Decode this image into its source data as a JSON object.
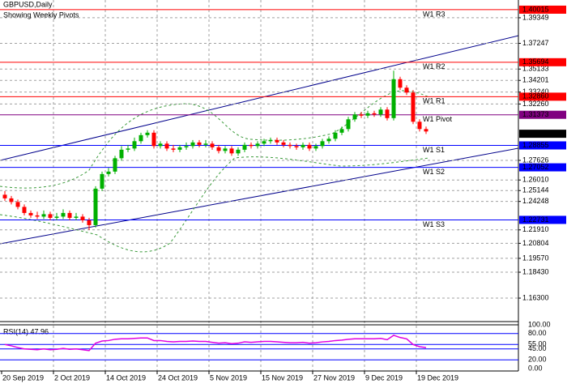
{
  "chart_data": {
    "type": "candlestick",
    "title": "GBPUSD,Daily",
    "subtitle": "Showing Weekly Pivots",
    "categories": [
      "20 Sep 2019",
      null,
      null,
      null,
      null,
      null,
      null,
      null,
      "2 Oct 2019",
      null,
      null,
      null,
      null,
      null,
      null,
      null,
      "14 Oct 2019",
      null,
      null,
      null,
      null,
      null,
      null,
      null,
      "24 Oct 2019",
      null,
      null,
      null,
      null,
      null,
      null,
      null,
      "5 Nov 2019",
      null,
      null,
      null,
      null,
      null,
      null,
      null,
      "15 Nov 2019",
      null,
      null,
      null,
      null,
      null,
      null,
      null,
      "27 Nov 2019",
      null,
      null,
      null,
      null,
      null,
      null,
      null,
      "9 Dec 2019",
      null,
      null,
      null,
      null,
      null,
      null,
      null,
      "19 Dec 2019",
      null
    ],
    "opens": [
      1.248,
      1.245,
      1.242,
      1.238,
      1.233,
      1.231,
      1.23,
      1.232,
      1.229,
      1.23,
      1.233,
      1.229,
      1.23,
      1.227,
      1.223,
      1.253,
      1.265,
      1.267,
      1.278,
      1.285,
      1.286,
      1.292,
      1.297,
      1.299,
      1.288,
      1.29,
      1.286,
      1.285,
      1.287,
      1.288,
      1.291,
      1.289,
      1.29,
      1.287,
      1.284,
      1.286,
      1.282,
      1.285,
      1.289,
      1.288,
      1.29,
      1.292,
      1.293,
      1.291,
      1.289,
      1.288,
      1.287,
      1.289,
      1.286,
      1.288,
      1.292,
      1.294,
      1.299,
      1.302,
      1.31,
      1.314,
      1.313,
      1.315,
      1.314,
      1.318,
      1.311,
      1.343,
      1.336,
      1.332,
      1.308,
      1.302
    ],
    "highs": [
      1.251,
      1.247,
      1.244,
      1.24,
      1.235,
      1.234,
      1.235,
      1.234,
      1.233,
      1.236,
      1.235,
      1.233,
      1.232,
      1.229,
      1.255,
      1.267,
      1.27,
      1.28,
      1.288,
      1.289,
      1.295,
      1.299,
      1.301,
      1.301,
      1.292,
      1.292,
      1.289,
      1.289,
      1.291,
      1.293,
      1.293,
      1.293,
      1.292,
      1.289,
      1.288,
      1.288,
      1.287,
      1.291,
      1.291,
      1.292,
      1.294,
      1.295,
      1.295,
      1.293,
      1.291,
      1.29,
      1.291,
      1.291,
      1.29,
      1.294,
      1.296,
      1.301,
      1.304,
      1.312,
      1.316,
      1.316,
      1.317,
      1.317,
      1.32,
      1.32,
      1.35,
      1.345,
      1.338,
      1.334,
      1.31,
      1.304
    ],
    "lows": [
      1.243,
      1.24,
      1.236,
      1.231,
      1.229,
      1.228,
      1.228,
      1.227,
      1.227,
      1.228,
      1.227,
      1.227,
      1.225,
      1.219,
      1.221,
      1.251,
      1.263,
      1.265,
      1.276,
      1.283,
      1.284,
      1.29,
      1.295,
      1.286,
      1.286,
      1.284,
      1.283,
      1.283,
      1.285,
      1.286,
      1.287,
      1.287,
      1.285,
      1.282,
      1.282,
      1.28,
      1.28,
      1.283,
      1.286,
      1.286,
      1.288,
      1.29,
      1.289,
      1.287,
      1.286,
      1.285,
      1.285,
      1.284,
      1.284,
      1.286,
      1.29,
      1.292,
      1.297,
      1.3,
      1.308,
      1.311,
      1.311,
      1.312,
      1.312,
      1.309,
      1.309,
      1.334,
      1.33,
      1.306,
      1.3,
      1.298
    ],
    "closes": [
      1.245,
      1.242,
      1.238,
      1.233,
      1.231,
      1.23,
      1.232,
      1.229,
      1.23,
      1.233,
      1.229,
      1.23,
      1.227,
      1.223,
      1.253,
      1.265,
      1.267,
      1.278,
      1.285,
      1.286,
      1.292,
      1.297,
      1.299,
      1.288,
      1.29,
      1.286,
      1.285,
      1.287,
      1.288,
      1.291,
      1.289,
      1.29,
      1.287,
      1.284,
      1.286,
      1.282,
      1.285,
      1.289,
      1.288,
      1.29,
      1.292,
      1.293,
      1.291,
      1.289,
      1.288,
      1.287,
      1.289,
      1.286,
      1.288,
      1.292,
      1.294,
      1.299,
      1.302,
      1.31,
      1.314,
      1.313,
      1.315,
      1.314,
      1.318,
      1.311,
      1.343,
      1.336,
      1.332,
      1.308,
      1.302,
      1.3
    ],
    "up_color": "#00b000",
    "down_color": "#ff0000",
    "ylim": [
      1.1437,
      1.4081
    ],
    "yticks": [
      1.39349,
      1.37247,
      1.35133,
      1.34201,
      {
        "value": 1.3324,
        "label": "1.33240"
      },
      {
        "value": 1.3226,
        "label": "1.32260"
      },
      1.27626,
      {
        "value": 1.2601,
        "label": "1.26010"
      },
      1.25144,
      1.24248,
      {
        "value": 1.2191,
        "label": "1.21910"
      },
      1.20804,
      {
        "value": 1.1957,
        "label": "1.19570"
      },
      {
        "value": 1.1843,
        "label": "1.18430"
      },
      {
        "value": 1.163,
        "label": "1.16300"
      }
    ],
    "grid": true,
    "current_price": 1.29813,
    "levels": [
      {
        "name": "W1 R3",
        "value": 1.40015,
        "label": "1.40015",
        "color": "#ff0000"
      },
      {
        "name": "W1 R2",
        "value": 1.35694,
        "label": "1.35694",
        "color": "#ff0000"
      },
      {
        "name": "W1 R1",
        "value": 1.3286,
        "label": "1.32860",
        "color": "#ff0000"
      },
      {
        "name": "W1 Pivot",
        "value": 1.31373,
        "label": "1.31373",
        "color": "#800080"
      },
      {
        "name": "W1 S1",
        "value": 1.28855,
        "label": "1.28855",
        "color": "#0000ff"
      },
      {
        "name": "W1 S2",
        "value": 1.27052,
        "label": "1.27052",
        "color": "#0000ff"
      },
      {
        "name": "W1 S3",
        "value": 1.22731,
        "label": "1.22731",
        "color": "#0000ff"
      }
    ],
    "rsi": {
      "title": "RSI(14) 47.96",
      "color": "#e000e0",
      "values": [
        55,
        52,
        48,
        45,
        44,
        43,
        45,
        43,
        44,
        46,
        44,
        45,
        43,
        41,
        58,
        63,
        64,
        67,
        68,
        68,
        69,
        70,
        70,
        64,
        64,
        62,
        61,
        62,
        62,
        63,
        62,
        62,
        60,
        58,
        59,
        57,
        58,
        61,
        60,
        61,
        62,
        62,
        61,
        60,
        59,
        59,
        60,
        58,
        59,
        61,
        62,
        64,
        65,
        67,
        68,
        68,
        68,
        68,
        69,
        66,
        76,
        71,
        68,
        55,
        50,
        48
      ],
      "ylim": [
        0,
        100
      ],
      "yticks": [
        {
          "value": 100,
          "label": "100.00"
        },
        {
          "value": 80,
          "label": "80.00"
        },
        {
          "value": 55,
          "label": "55.00"
        },
        {
          "value": 45,
          "label": "45.00"
        },
        {
          "value": 20,
          "label": "20.00"
        },
        {
          "value": 0,
          "label": "0.00"
        }
      ]
    }
  }
}
